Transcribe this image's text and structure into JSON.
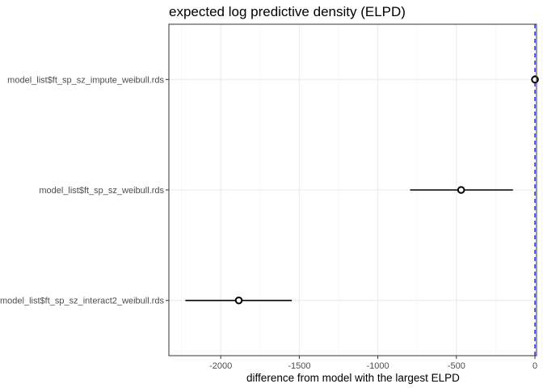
{
  "chart_data": {
    "type": "scatter",
    "title": "expected log predictive density (ELPD)",
    "xlabel": "difference from model with the largest ELPD",
    "ylabel": "",
    "xlim": [
      -2330,
      10
    ],
    "xticks": [
      -2000,
      -1500,
      -1000,
      -500,
      0
    ],
    "xtick_labels": [
      "-2000",
      "-1500",
      "-1000",
      "-500",
      "0"
    ],
    "grid": true,
    "reference_line": {
      "x": 0,
      "style": "dashed",
      "color": "#0000ff"
    },
    "point_color": "#000000",
    "points": [
      {
        "label": "model_list$ft_sp_sz_impute_weibull.rds",
        "estimate": 0,
        "lower": 0,
        "upper": 0
      },
      {
        "label": "model_list$ft_sp_sz_weibull.rds",
        "estimate": -470,
        "lower": -795,
        "upper": -140
      },
      {
        "label": "model_list$ft_sp_sz_interact2_weibull.rds",
        "estimate": -1885,
        "lower": -2225,
        "upper": -1548
      }
    ]
  }
}
